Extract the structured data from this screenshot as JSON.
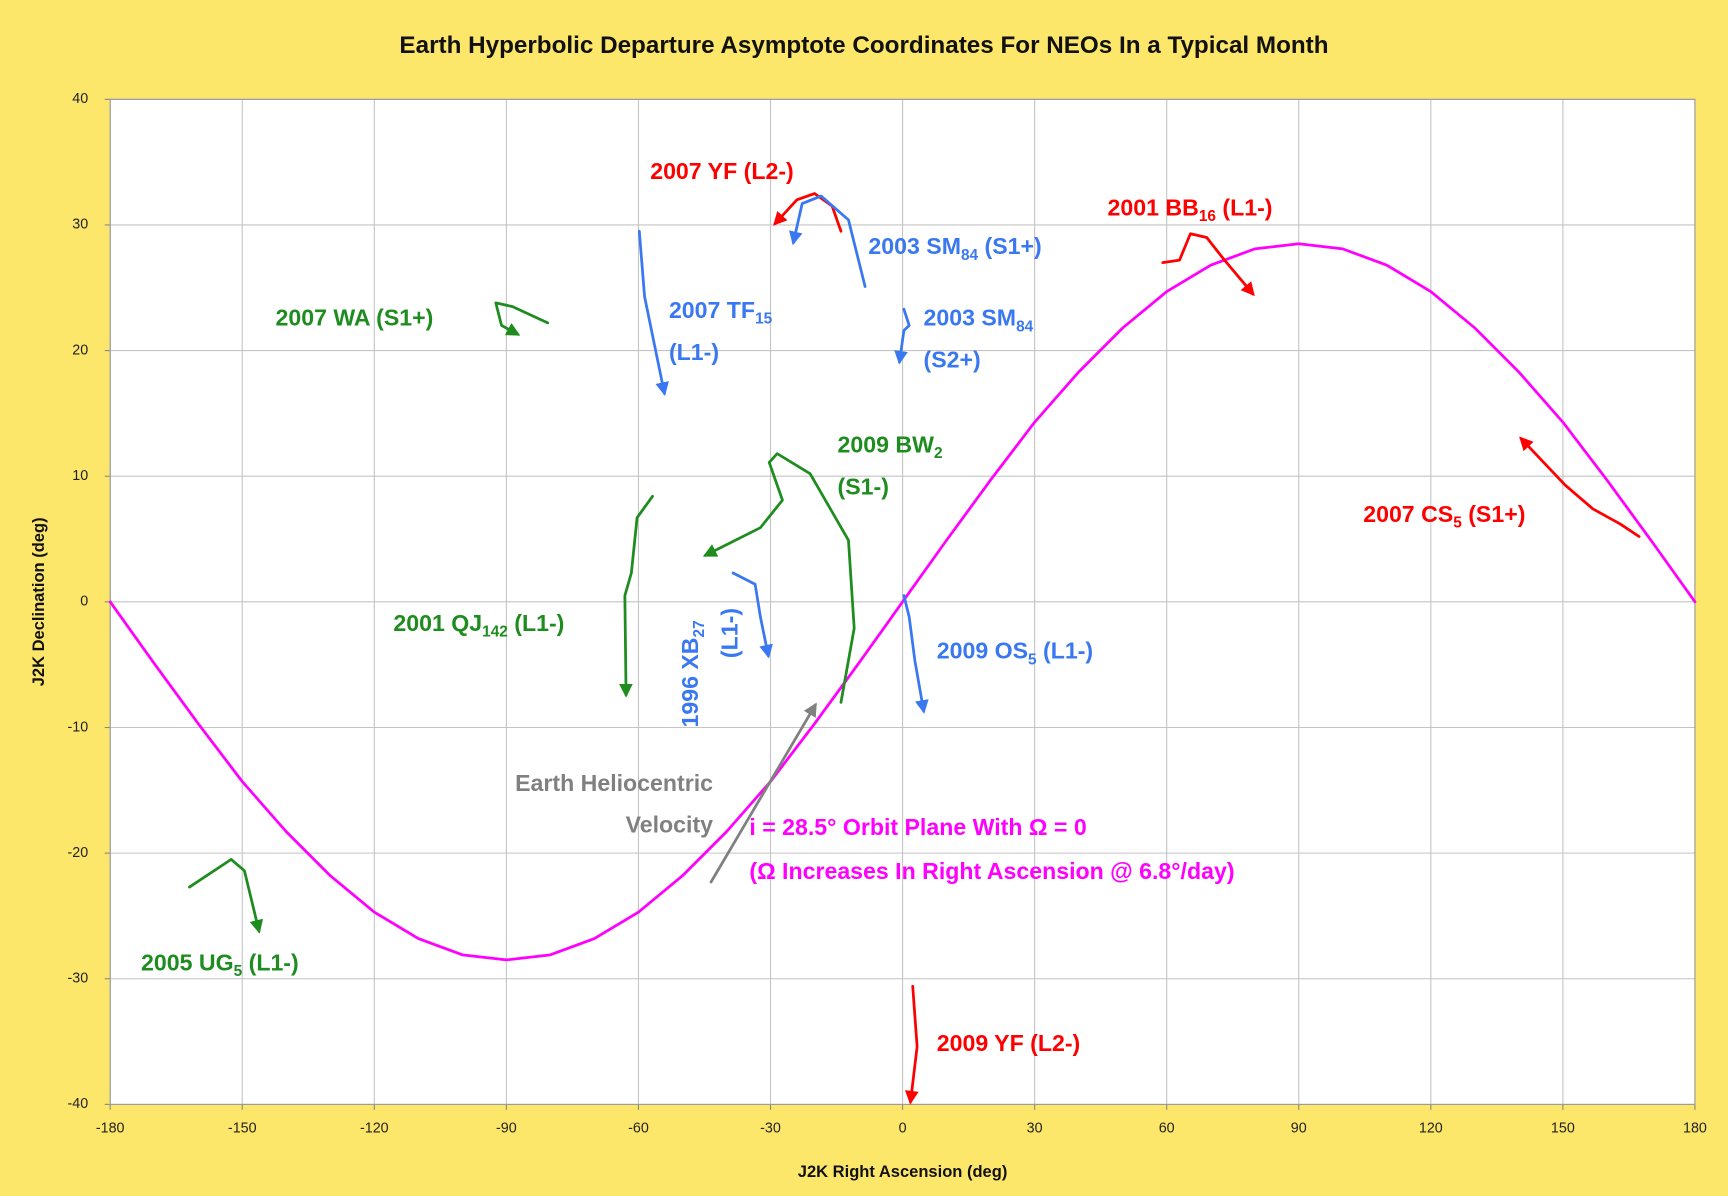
{
  "chart_data": {
    "type": "line",
    "title": "Earth Hyperbolic Departure Asymptote Coordinates For NEOs In a Typical Month",
    "x_label": "J2K Right Ascension (deg)",
    "y_label": "J2K Declination (deg)",
    "xlim": [
      -180,
      180
    ],
    "ylim": [
      -40,
      40
    ],
    "xticks": [
      -180,
      -150,
      -120,
      -90,
      -60,
      -30,
      0,
      30,
      60,
      90,
      120,
      150,
      180
    ],
    "yticks": [
      -40,
      -30,
      -20,
      -10,
      0,
      10,
      20,
      30,
      40
    ],
    "grid": true,
    "series": [
      {
        "color": "#ff00ff",
        "arrow": false,
        "label_lines": [
          [
            "i = 28.5° Orbit Plane With Ω = 0"
          ],
          [
            "(Ω Increases In Right Ascension @ 6.8°/day)"
          ]
        ],
        "x": [
          -180,
          -170,
          -160,
          -150,
          -140,
          -130,
          -120,
          -110,
          -100,
          -90,
          -80,
          -70,
          -60,
          -50,
          -40,
          -30,
          -20,
          -10,
          0,
          10,
          20,
          30,
          40,
          50,
          60,
          70,
          80,
          90,
          100,
          110,
          120,
          130,
          140,
          150,
          160,
          170,
          180
        ],
        "values": [
          0,
          -4.9,
          -9.7,
          -14.3,
          -18.3,
          -21.8,
          -24.7,
          -26.8,
          -28.1,
          -28.5,
          -28.1,
          -26.8,
          -24.7,
          -21.8,
          -18.3,
          -14.3,
          -9.7,
          -4.9,
          0,
          4.9,
          9.7,
          14.3,
          18.3,
          21.8,
          24.7,
          26.8,
          28.1,
          28.5,
          28.1,
          26.8,
          24.7,
          21.8,
          18.3,
          14.3,
          9.7,
          4.9,
          0
        ]
      },
      {
        "color": "#ff0000",
        "arrow": true,
        "label_lines": [
          [
            "2007 YF (L2-)"
          ]
        ],
        "x": [
          -14,
          -16,
          -20,
          -24,
          -29
        ],
        "values": [
          29.5,
          31.5,
          32.5,
          32,
          30.1
        ]
      },
      {
        "color": "#3a78f2",
        "arrow": true,
        "label_lines": [
          [
            "2003 SM",
            "84",
            " (S1+)"
          ]
        ],
        "x": [
          -8.5,
          -12.3,
          -18.5,
          -22.8,
          -24.8
        ],
        "values": [
          25.1,
          30.4,
          32.3,
          31.7,
          28.6
        ]
      },
      {
        "color": "#ff0000",
        "arrow": true,
        "label_lines": [
          [
            "2001 BB",
            "16",
            " (L1-)"
          ]
        ],
        "x": [
          59.1,
          62.9,
          65.4,
          69.1,
          72.9,
          79.6
        ],
        "values": [
          27.0,
          27.2,
          29.3,
          29.0,
          27.3,
          24.5
        ]
      },
      {
        "color": "#1e8c1e",
        "arrow": true,
        "label_lines": [
          [
            "2007 WA (S1+)"
          ]
        ],
        "x": [
          -80.6,
          -88.6,
          -92.4,
          -91.1,
          -87.4
        ],
        "values": [
          22.2,
          23.5,
          23.8,
          22.0,
          21.3
        ]
      },
      {
        "color": "#3a78f2",
        "arrow": true,
        "label_lines": [
          [
            "2007 TF",
            "15"
          ],
          [
            "(L1-)"
          ]
        ],
        "x": [
          -59.8,
          -58.6,
          -54.1
        ],
        "values": [
          29.5,
          24.3,
          16.6
        ]
      },
      {
        "color": "#3a78f2",
        "arrow": true,
        "label_lines": [
          [
            "2003 SM",
            "84"
          ],
          [
            "(S2+)"
          ]
        ],
        "x": [
          0.3,
          1.5,
          0.3,
          -0.7
        ],
        "values": [
          23.3,
          22.0,
          21.6,
          19.1
        ]
      },
      {
        "color": "#1e8c1e",
        "arrow": true,
        "label_lines": [
          [
            "2009 BW",
            "2"
          ],
          [
            "(S1-)"
          ]
        ],
        "x": [
          -14,
          -11,
          -12.3,
          -21.0,
          -28.5,
          -30.3,
          -27.3,
          -32.3,
          -44.8
        ],
        "values": [
          -8.0,
          -2.1,
          4.9,
          10.2,
          11.8,
          11.1,
          8.1,
          5.9,
          3.7
        ]
      },
      {
        "color": "#1e8c1e",
        "arrow": true,
        "label_lines": [
          [
            "2001 QJ",
            "142",
            " (L1-)"
          ]
        ],
        "x": [
          -56.8,
          -60.3,
          -61.6,
          -63.1,
          -62.8
        ],
        "values": [
          8.4,
          6.7,
          2.3,
          0.5,
          -7.4
        ]
      },
      {
        "color": "#3a78f2",
        "arrow": true,
        "label_lines": [
          [
            "1996 XB",
            "27"
          ],
          [
            "(L1-)"
          ]
        ],
        "x": [
          -38.5,
          -33.5,
          -32.3,
          -30.5
        ],
        "values": [
          2.3,
          1.4,
          -1.2,
          -4.3
        ]
      },
      {
        "color": "#3a78f2",
        "arrow": true,
        "label_lines": [
          [
            "2009 OS",
            "5",
            " (L1-)"
          ]
        ],
        "x": [
          0.3,
          1.5,
          2.8,
          4.8
        ],
        "values": [
          0.5,
          -1.2,
          -4.7,
          -8.7
        ]
      },
      {
        "color": "#ff0000",
        "arrow": true,
        "label_lines": [
          [
            "2007 CS",
            "5",
            " (S1+)"
          ]
        ],
        "x": [
          167.3,
          163.0,
          156.8,
          150.5,
          140.5
        ],
        "values": [
          5.2,
          6.2,
          7.4,
          9.3,
          13.0
        ]
      },
      {
        "color": "#1e8c1e",
        "arrow": true,
        "label_lines": [
          [
            "2005 UG",
            "5",
            " (L1-)"
          ]
        ],
        "x": [
          -162,
          -152.5,
          -149.5,
          -146.2
        ],
        "values": [
          -22.7,
          -20.5,
          -21.4,
          -26.2
        ]
      },
      {
        "color": "#ff0000",
        "arrow": true,
        "label_lines": [
          [
            "2009 YF (L2-)"
          ]
        ],
        "x": [
          2.3,
          3.3,
          1.8
        ],
        "values": [
          -30.6,
          -35.4,
          -39.8
        ]
      },
      {
        "color": "#808080",
        "arrow": true,
        "label_lines": [
          [
            "Earth Heliocentric"
          ],
          [
            "Velocity"
          ]
        ],
        "x": [
          -43.5,
          -19.8
        ],
        "values": [
          -22.3,
          -8.2
        ]
      }
    ]
  }
}
